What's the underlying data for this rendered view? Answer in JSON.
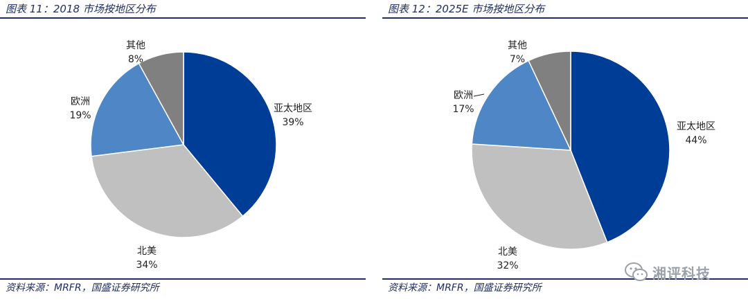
{
  "charts": [
    {
      "figure_title": "图表 11：2018 市场按地区分布",
      "source": "资料来源：MRFR，国盛证券研究所"
    },
    {
      "figure_title": "图表 12：2025E 市场按地区分布",
      "source": "资料来源：MRFR，国盛证券研究所"
    }
  ],
  "chart_data": [
    {
      "type": "pie",
      "categories": [
        "亚太地区",
        "北美",
        "欧洲",
        "其他"
      ],
      "values": [
        39,
        34,
        19,
        8
      ],
      "value_labels": [
        "39%",
        "34%",
        "19%",
        "8%"
      ],
      "colors": [
        "#003d96",
        "#c0c0c0",
        "#4f86c6",
        "#808080"
      ],
      "start": "12 o'clock",
      "direction": "clockwise",
      "legend": "none"
    },
    {
      "type": "pie",
      "categories": [
        "亚太地区",
        "北美",
        "欧洲",
        "其他"
      ],
      "values": [
        44,
        32,
        17,
        7
      ],
      "value_labels": [
        "44%",
        "32%",
        "17%",
        "7%"
      ],
      "colors": [
        "#003d96",
        "#c0c0c0",
        "#4f86c6",
        "#808080"
      ],
      "start": "12 o'clock",
      "direction": "clockwise",
      "legend": "none"
    }
  ],
  "watermark": {
    "text": "湘评科技",
    "icon": "wechat-icon"
  }
}
